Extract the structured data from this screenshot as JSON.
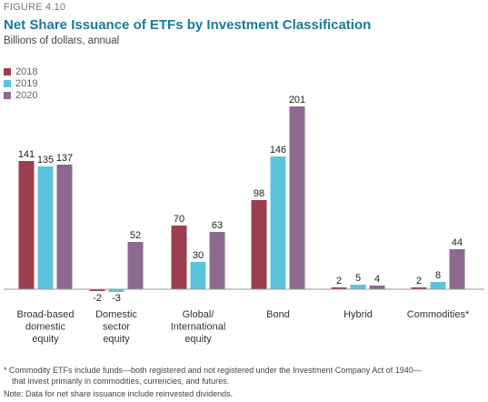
{
  "figure_label": "FIGURE 4.10",
  "footnotes": [
    "* Commodity ETFs include funds—both registered and not registered under the Investment Company Act of 1940—",
    "that invest primarily in commodities, currencies, and futures."
  ],
  "note": "Note: Data for net share issuance include reinvested dividends.",
  "colors": {
    "2018": "#9b3f50",
    "2019": "#5bc4dc",
    "2020": "#8c6a90",
    "title": "#1c7a9c"
  },
  "chart_data": {
    "type": "bar",
    "title": "Net Share Issuance of ETFs by Investment Classification",
    "subtitle": "Billions of dollars, annual",
    "categories": [
      [
        "Broad-based",
        "domestic",
        "equity"
      ],
      [
        "Domestic",
        "sector",
        "equity"
      ],
      [
        "Global/",
        "International",
        "equity"
      ],
      [
        "Bond"
      ],
      [
        "Hybrid"
      ],
      [
        "Commodities*"
      ]
    ],
    "series": [
      {
        "name": "2018",
        "color": "#9b3f50",
        "values": [
          141,
          -2,
          70,
          98,
          2,
          2
        ]
      },
      {
        "name": "2019",
        "color": "#5bc4dc",
        "values": [
          135,
          -3,
          30,
          146,
          5,
          8
        ]
      },
      {
        "name": "2020",
        "color": "#8c6a90",
        "values": [
          137,
          52,
          63,
          201,
          4,
          44
        ]
      }
    ],
    "legend_position": "top-left",
    "grid": false,
    "ylim": [
      -3,
      201
    ]
  }
}
